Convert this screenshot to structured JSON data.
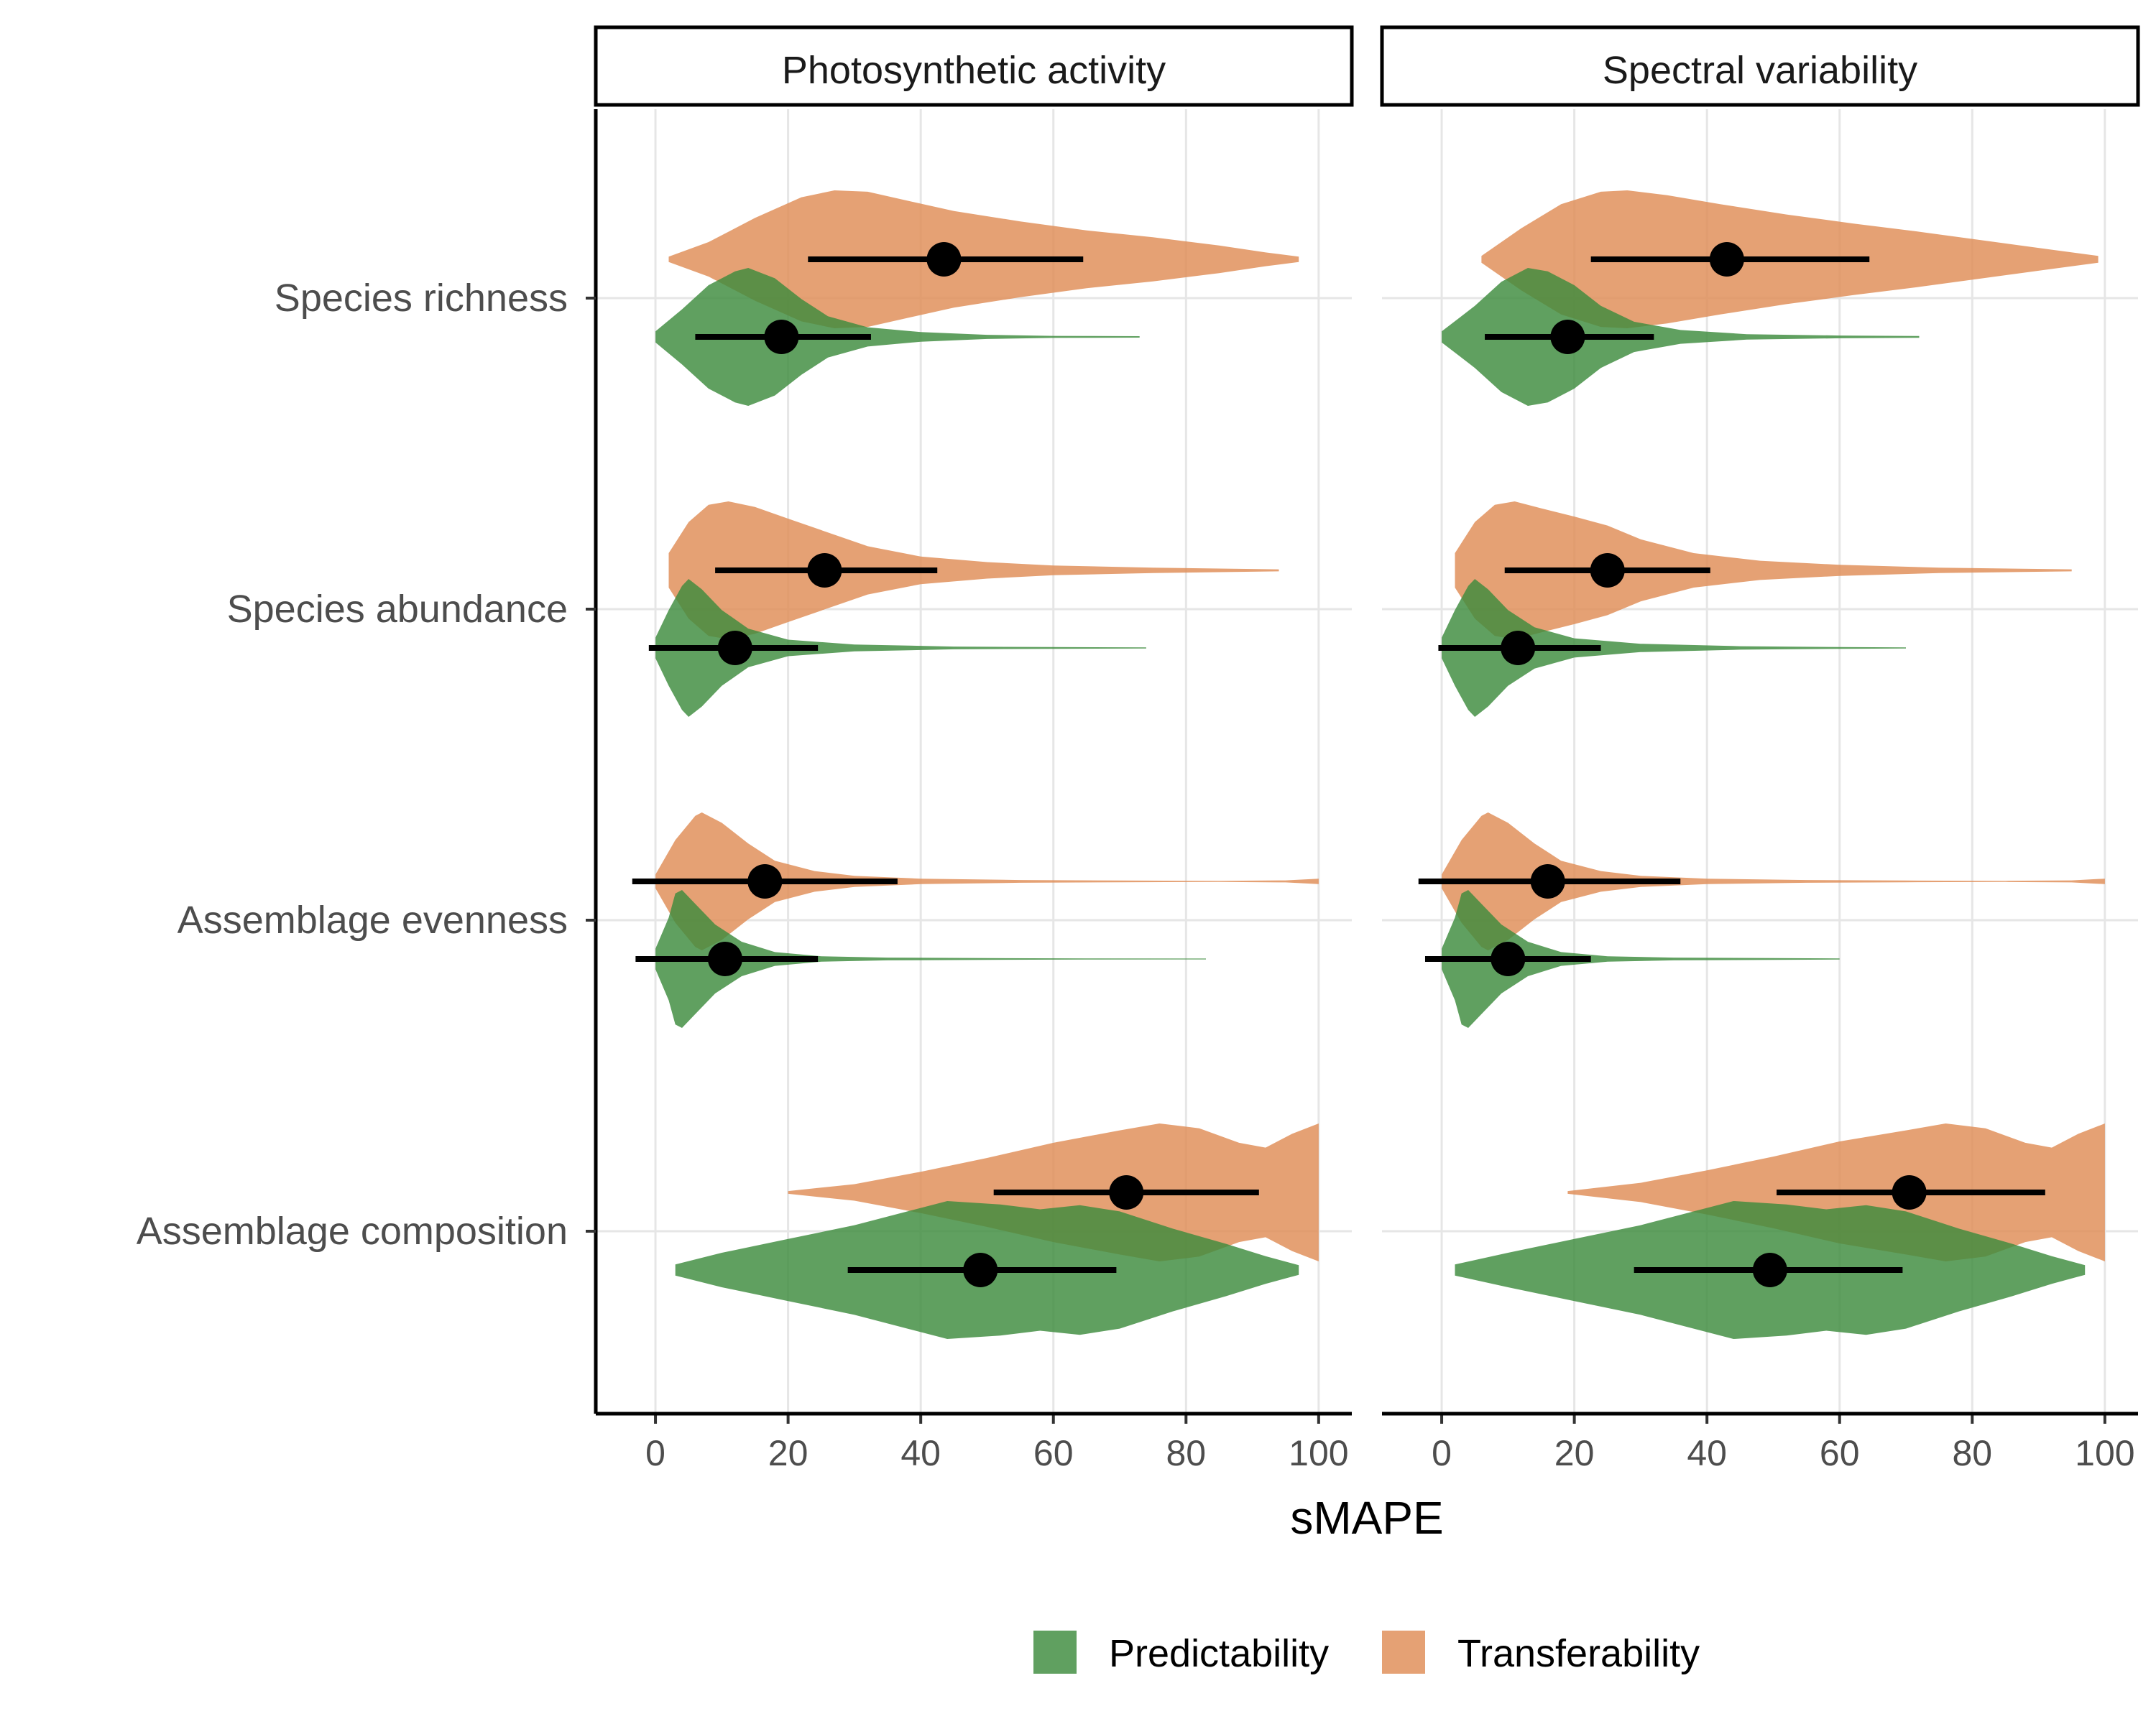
{
  "chart_data": {
    "type": "violin",
    "facets": [
      "Photosynthetic activity",
      "Spectral variability"
    ],
    "categories": [
      "Species richness",
      "Species abundance",
      "Assemblage evenness",
      "Assemblage composition"
    ],
    "xlabel": "sMAPE",
    "ylabel": "",
    "xlim": [
      -9,
      105
    ],
    "xticks": [
      0,
      20,
      40,
      60,
      80,
      100
    ],
    "grid": true,
    "legend": {
      "position": "bottom",
      "entries": [
        {
          "name": "Predictability",
          "color": "#3d8b3d"
        },
        {
          "name": "Transferability",
          "color": "#df8c55"
        }
      ]
    },
    "colors": {
      "Predictability": "#3d8b3d",
      "Transferability": "#df8c55"
    },
    "panels": [
      {
        "facet": "Photosynthetic activity",
        "groups": [
          {
            "category": "Species richness",
            "series": "Transferability",
            "density": [
              [
                2,
                0.04
              ],
              [
                8,
                0.25
              ],
              [
                15,
                0.6
              ],
              [
                22,
                0.9
              ],
              [
                27,
                1.0
              ],
              [
                32,
                0.98
              ],
              [
                38,
                0.85
              ],
              [
                45,
                0.7
              ],
              [
                55,
                0.55
              ],
              [
                65,
                0.42
              ],
              [
                75,
                0.32
              ],
              [
                85,
                0.2
              ],
              [
                92,
                0.1
              ],
              [
                97,
                0.04
              ]
            ],
            "mean": 43.5,
            "low": 23,
            "high": 64.5
          },
          {
            "category": "Species richness",
            "series": "Predictability",
            "density": [
              [
                0,
                0.08
              ],
              [
                4,
                0.4
              ],
              [
                8,
                0.75
              ],
              [
                12,
                0.95
              ],
              [
                14,
                1.0
              ],
              [
                18,
                0.85
              ],
              [
                22,
                0.55
              ],
              [
                26,
                0.3
              ],
              [
                32,
                0.14
              ],
              [
                40,
                0.07
              ],
              [
                50,
                0.03
              ],
              [
                60,
                0.015
              ],
              [
                73,
                0.01
              ]
            ],
            "mean": 19,
            "low": 6,
            "high": 32.5
          },
          {
            "category": "Species abundance",
            "series": "Transferability",
            "density": [
              [
                2,
                0.25
              ],
              [
                5,
                0.7
              ],
              [
                8,
                0.95
              ],
              [
                11,
                1.0
              ],
              [
                15,
                0.92
              ],
              [
                20,
                0.75
              ],
              [
                26,
                0.55
              ],
              [
                32,
                0.35
              ],
              [
                40,
                0.2
              ],
              [
                50,
                0.12
              ],
              [
                60,
                0.07
              ],
              [
                75,
                0.04
              ],
              [
                94,
                0.015
              ]
            ],
            "mean": 25.5,
            "low": 9,
            "high": 42.5
          },
          {
            "category": "Species abundance",
            "series": "Predictability",
            "density": [
              [
                0,
                0.15
              ],
              [
                2,
                0.55
              ],
              [
                4,
                0.9
              ],
              [
                5,
                1.0
              ],
              [
                7,
                0.85
              ],
              [
                10,
                0.55
              ],
              [
                14,
                0.28
              ],
              [
                20,
                0.12
              ],
              [
                30,
                0.05
              ],
              [
                45,
                0.02
              ],
              [
                60,
                0.012
              ],
              [
                74,
                0.008
              ]
            ],
            "mean": 12,
            "low": -1,
            "high": 24.5
          },
          {
            "category": "Assemblage evenness",
            "series": "Transferability",
            "density": [
              [
                0,
                0.1
              ],
              [
                3,
                0.6
              ],
              [
                6,
                0.95
              ],
              [
                7,
                1.0
              ],
              [
                10,
                0.85
              ],
              [
                14,
                0.55
              ],
              [
                18,
                0.3
              ],
              [
                24,
                0.15
              ],
              [
                30,
                0.08
              ],
              [
                40,
                0.04
              ],
              [
                55,
                0.02
              ],
              [
                70,
                0.012
              ],
              [
                85,
                0.008
              ],
              [
                95,
                0.015
              ],
              [
                100,
                0.04
              ]
            ],
            "mean": 16.5,
            "low": -3.5,
            "high": 36.5
          },
          {
            "category": "Assemblage evenness",
            "series": "Predictability",
            "density": [
              [
                0,
                0.15
              ],
              [
                2,
                0.6
              ],
              [
                3,
                0.95
              ],
              [
                4,
                1.0
              ],
              [
                6,
                0.8
              ],
              [
                9,
                0.5
              ],
              [
                13,
                0.25
              ],
              [
                18,
                0.1
              ],
              [
                25,
                0.04
              ],
              [
                35,
                0.02
              ],
              [
                50,
                0.012
              ],
              [
                65,
                0.008
              ],
              [
                83,
                0.006
              ]
            ],
            "mean": 10.5,
            "low": -3,
            "high": 24.5
          },
          {
            "category": "Assemblage composition",
            "series": "Transferability",
            "density": [
              [
                20,
                0.02
              ],
              [
                30,
                0.12
              ],
              [
                40,
                0.3
              ],
              [
                50,
                0.5
              ],
              [
                60,
                0.72
              ],
              [
                70,
                0.9
              ],
              [
                76,
                1.0
              ],
              [
                82,
                0.93
              ],
              [
                88,
                0.72
              ],
              [
                92,
                0.65
              ],
              [
                96,
                0.85
              ],
              [
                100,
                1.0
              ]
            ],
            "mean": 71,
            "low": 51,
            "high": 91
          },
          {
            "category": "Assemblage composition",
            "series": "Predictability",
            "density": [
              [
                3,
                0.08
              ],
              [
                10,
                0.25
              ],
              [
                20,
                0.45
              ],
              [
                30,
                0.65
              ],
              [
                38,
                0.85
              ],
              [
                44,
                1.0
              ],
              [
                52,
                0.95
              ],
              [
                58,
                0.88
              ],
              [
                64,
                0.94
              ],
              [
                70,
                0.85
              ],
              [
                78,
                0.6
              ],
              [
                86,
                0.38
              ],
              [
                92,
                0.2
              ],
              [
                97,
                0.07
              ]
            ],
            "mean": 49,
            "low": 29,
            "high": 69.5
          }
        ]
      },
      {
        "facet": "Spectral variability",
        "groups": [
          {
            "category": "Species richness",
            "series": "Transferability",
            "density": [
              [
                6,
                0.05
              ],
              [
                12,
                0.45
              ],
              [
                18,
                0.8
              ],
              [
                24,
                0.98
              ],
              [
                28,
                1.0
              ],
              [
                34,
                0.93
              ],
              [
                42,
                0.8
              ],
              [
                52,
                0.65
              ],
              [
                62,
                0.52
              ],
              [
                72,
                0.4
              ],
              [
                82,
                0.27
              ],
              [
                92,
                0.14
              ],
              [
                99,
                0.05
              ]
            ],
            "mean": 43,
            "low": 22.5,
            "high": 64.5
          },
          {
            "category": "Species richness",
            "series": "Predictability",
            "density": [
              [
                0,
                0.08
              ],
              [
                5,
                0.45
              ],
              [
                9,
                0.8
              ],
              [
                13,
                1.0
              ],
              [
                16,
                0.95
              ],
              [
                20,
                0.75
              ],
              [
                24,
                0.45
              ],
              [
                29,
                0.22
              ],
              [
                36,
                0.1
              ],
              [
                46,
                0.04
              ],
              [
                60,
                0.02
              ],
              [
                72,
                0.012
              ]
            ],
            "mean": 19,
            "low": 6.5,
            "high": 32
          },
          {
            "category": "Species abundance",
            "series": "Transferability",
            "density": [
              [
                2,
                0.25
              ],
              [
                5,
                0.7
              ],
              [
                8,
                0.95
              ],
              [
                11,
                1.0
              ],
              [
                15,
                0.9
              ],
              [
                20,
                0.78
              ],
              [
                25,
                0.65
              ],
              [
                30,
                0.45
              ],
              [
                38,
                0.25
              ],
              [
                48,
                0.14
              ],
              [
                60,
                0.08
              ],
              [
                75,
                0.04
              ],
              [
                95,
                0.015
              ]
            ],
            "mean": 25,
            "low": 9.5,
            "high": 40.5
          },
          {
            "category": "Species abundance",
            "series": "Predictability",
            "density": [
              [
                0,
                0.15
              ],
              [
                2,
                0.55
              ],
              [
                4,
                0.9
              ],
              [
                5,
                1.0
              ],
              [
                7,
                0.85
              ],
              [
                10,
                0.55
              ],
              [
                14,
                0.3
              ],
              [
                20,
                0.14
              ],
              [
                30,
                0.06
              ],
              [
                45,
                0.025
              ],
              [
                60,
                0.012
              ],
              [
                70,
                0.008
              ]
            ],
            "mean": 11.5,
            "low": -0.5,
            "high": 24
          },
          {
            "category": "Assemblage evenness",
            "series": "Transferability",
            "density": [
              [
                0,
                0.1
              ],
              [
                3,
                0.6
              ],
              [
                6,
                0.95
              ],
              [
                7,
                1.0
              ],
              [
                10,
                0.85
              ],
              [
                14,
                0.55
              ],
              [
                18,
                0.3
              ],
              [
                24,
                0.15
              ],
              [
                30,
                0.08
              ],
              [
                40,
                0.04
              ],
              [
                55,
                0.02
              ],
              [
                70,
                0.012
              ],
              [
                85,
                0.008
              ],
              [
                95,
                0.015
              ],
              [
                100,
                0.04
              ]
            ],
            "mean": 16,
            "low": -3.5,
            "high": 36
          },
          {
            "category": "Assemblage evenness",
            "series": "Predictability",
            "density": [
              [
                0,
                0.15
              ],
              [
                2,
                0.6
              ],
              [
                3,
                0.95
              ],
              [
                4,
                1.0
              ],
              [
                6,
                0.8
              ],
              [
                9,
                0.5
              ],
              [
                13,
                0.25
              ],
              [
                18,
                0.1
              ],
              [
                25,
                0.04
              ],
              [
                35,
                0.02
              ],
              [
                50,
                0.012
              ],
              [
                60,
                0.008
              ]
            ],
            "mean": 10,
            "low": -2.5,
            "high": 22.5
          },
          {
            "category": "Assemblage composition",
            "series": "Transferability",
            "density": [
              [
                19,
                0.02
              ],
              [
                30,
                0.14
              ],
              [
                40,
                0.32
              ],
              [
                50,
                0.52
              ],
              [
                60,
                0.74
              ],
              [
                70,
                0.9
              ],
              [
                76,
                1.0
              ],
              [
                82,
                0.93
              ],
              [
                88,
                0.72
              ],
              [
                92,
                0.65
              ],
              [
                96,
                0.85
              ],
              [
                100,
                1.0
              ]
            ],
            "mean": 70.5,
            "low": 50.5,
            "high": 91
          },
          {
            "category": "Assemblage composition",
            "series": "Predictability",
            "density": [
              [
                2,
                0.08
              ],
              [
                10,
                0.25
              ],
              [
                20,
                0.45
              ],
              [
                30,
                0.65
              ],
              [
                38,
                0.85
              ],
              [
                44,
                1.0
              ],
              [
                52,
                0.95
              ],
              [
                58,
                0.88
              ],
              [
                64,
                0.94
              ],
              [
                70,
                0.85
              ],
              [
                78,
                0.6
              ],
              [
                86,
                0.38
              ],
              [
                92,
                0.2
              ],
              [
                97,
                0.07
              ]
            ],
            "mean": 49.5,
            "low": 29,
            "high": 69.5
          }
        ]
      }
    ]
  }
}
